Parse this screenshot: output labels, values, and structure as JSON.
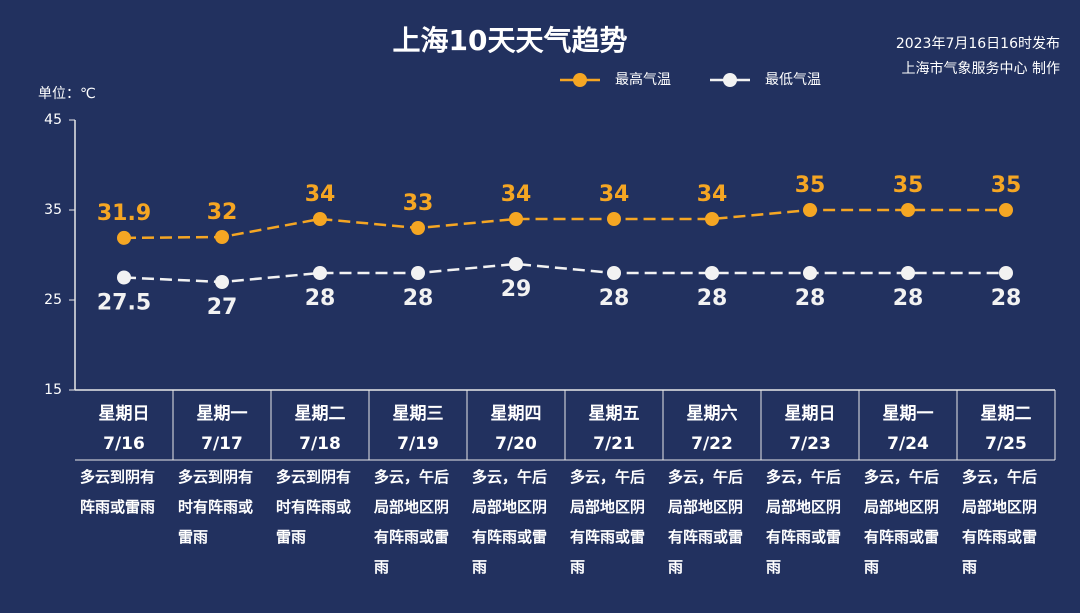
{
  "chart_data": {
    "type": "line",
    "title": "上海10天天气趋势",
    "publish_time": "2023年7月16日16时发布",
    "publisher": "上海市气象服务中心 制作",
    "y_unit": "单位：℃",
    "weekdays": [
      "星期日",
      "星期一",
      "星期二",
      "星期三",
      "星期四",
      "星期五",
      "星期六",
      "星期日",
      "星期一",
      "星期二"
    ],
    "categories": [
      "7/16",
      "7/17",
      "7/18",
      "7/19",
      "7/20",
      "7/21",
      "7/22",
      "7/23",
      "7/24",
      "7/25"
    ],
    "descriptions": [
      "多云到阴有阵雨或雷雨",
      "多云到阴有时有阵雨或雷雨",
      "多云到阴有时有阵雨或雷雨",
      "多云，午后局部地区阴有阵雨或雷雨",
      "多云，午后局部地区阴有阵雨或雷雨",
      "多云，午后局部地区阴有阵雨或雷雨",
      "多云，午后局部地区阴有阵雨或雷雨",
      "多云，午后局部地区阴有阵雨或雷雨",
      "多云，午后局部地区阴有阵雨或雷雨",
      "多云，午后局部地区阴有阵雨或雷雨"
    ],
    "series": [
      {
        "name": "最高气温",
        "color": "#f5a623",
        "values": [
          31.9,
          32,
          34,
          33,
          34,
          34,
          34,
          35,
          35,
          35
        ]
      },
      {
        "name": "最低气温",
        "color": "#f2f2f2",
        "values": [
          27.5,
          27,
          28,
          28,
          29,
          28,
          28,
          28,
          28,
          28
        ]
      }
    ],
    "ylim": [
      15,
      45
    ],
    "yticks": [
      15,
      25,
      35,
      45
    ],
    "grid": false
  }
}
